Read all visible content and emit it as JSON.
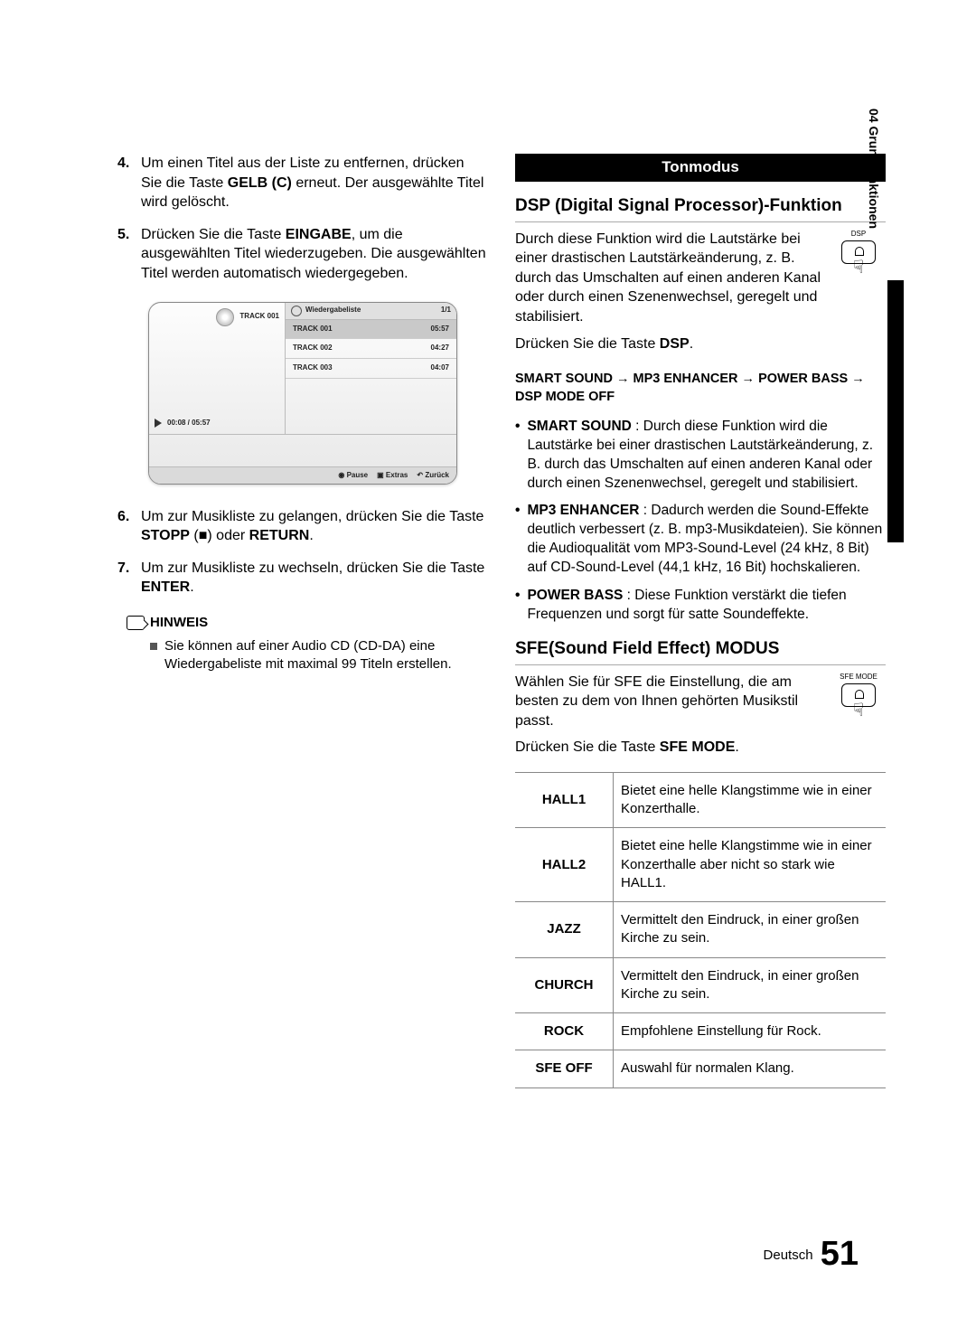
{
  "side_tab": "04   Grundfunktionen",
  "left": {
    "steps_a": [
      {
        "num": "4.",
        "html": "Um einen Titel aus der Liste zu entfernen, drücken Sie die Taste <b>GELB (C)</b> erneut. Der ausgewählte Titel wird gelöscht."
      },
      {
        "num": "5.",
        "html": "Drücken Sie die Taste <b>EINGABE</b>, um die ausgewählten Titel wiederzugeben. Die ausgewählten Titel werden automatisch wiedergegeben."
      }
    ],
    "player": {
      "now_track": "TRACK 001",
      "progress": "00:08 / 05:57",
      "list_label": "Wiedergabeliste",
      "page": "1/1",
      "tracks": [
        {
          "name": "TRACK 001",
          "time": "05:57",
          "active": true
        },
        {
          "name": "TRACK 002",
          "time": "04:27",
          "active": false
        },
        {
          "name": "TRACK 003",
          "time": "04:07",
          "active": false
        }
      ],
      "ctrl_pause": "Pause",
      "ctrl_extras": "Extras",
      "ctrl_back": "Zurück"
    },
    "steps_b": [
      {
        "num": "6.",
        "html": "Um zur Musikliste zu gelangen, drücken Sie die Taste <b>STOPP</b> (■) oder <b>RETURN</b>."
      },
      {
        "num": "7.",
        "html": "Um zur Musikliste zu wechseln, drücken Sie die Taste <b>ENTER</b>."
      }
    ],
    "note_label": "HINWEIS",
    "note_text": "Sie können auf einer Audio CD (CD-DA) eine Wiedergabeliste mit maximal 99 Titeln erstellen."
  },
  "right": {
    "section_title": "Tonmodus",
    "dsp_heading": "DSP (Digital Signal Processor)-Funktion",
    "dsp_intro": "Durch diese Funktion wird die Lautstärke bei einer drastischen Lautstärkeänderung, z. B. durch das Umschalten auf einen anderen Kanal oder durch einen Szenenwechsel, geregelt und stabilisiert.",
    "dsp_btn_label": "DSP",
    "dsp_press": "Drücken Sie die Taste <b>DSP</b>.",
    "mode_seq": "SMART SOUND  → MP3 ENHANCER → POWER BASS  →  DSP MODE OFF",
    "modes": [
      {
        "html": "<b>SMART SOUND</b> : Durch diese Funktion wird die Lautstärke bei einer drastischen Lautstärkeänderung, z. B. durch das Umschalten auf einen anderen Kanal oder durch einen Szenenwechsel, geregelt und stabilisiert."
      },
      {
        "html": "<b>MP3 ENHANCER</b>  : Dadurch werden die Sound-Effekte deutlich verbessert (z. B. mp3-Musikdateien). Sie können die Audioqualität vom MP3-Sound-Level (24 kHz, 8 Bit) auf CD-Sound-Level (44,1 kHz, 16 Bit) hochskalieren."
      },
      {
        "html": "<b>POWER BASS</b> : Diese Funktion verstärkt die tiefen Frequenzen und sorgt für satte Soundeffekte."
      }
    ],
    "sfe_heading": "SFE(Sound Field Effect) MODUS",
    "sfe_btn_label": "SFE MODE",
    "sfe_intro": "Wählen Sie für SFE die Einstellung, die am besten zu dem von Ihnen gehörten Musikstil passt.",
    "sfe_press": "Drücken Sie die Taste <b>SFE MODE</b>.",
    "table": [
      {
        "mode": "HALL1",
        "desc": "Bietet eine helle Klangstimme wie in einer Konzerthalle."
      },
      {
        "mode": "HALL2",
        "desc": "Bietet eine helle Klangstimme wie in einer Konzerthalle aber nicht so stark wie HALL1."
      },
      {
        "mode": "JAZZ",
        "desc": "Vermittelt den Eindruck, in einer großen Kirche zu sein."
      },
      {
        "mode": "CHURCH",
        "desc": "Vermittelt den Eindruck, in einer großen Kirche zu sein."
      },
      {
        "mode": "ROCK",
        "desc": "Empfohlene Einstellung für Rock."
      },
      {
        "mode": "SFE OFF",
        "desc": "Auswahl für normalen Klang."
      }
    ]
  },
  "footer": {
    "lang": "Deutsch",
    "page": "51"
  }
}
